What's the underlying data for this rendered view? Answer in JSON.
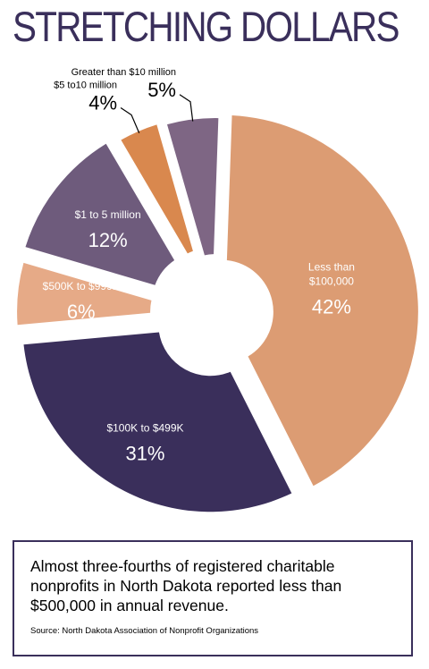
{
  "chart_data": {
    "type": "pie",
    "title": "STRETCHING DOLLARS",
    "categories": [
      "Less than $100,000",
      "$100K to $499K",
      "$500K to $999K",
      "$1 to 5 million",
      "$5 to10 million",
      "Greater than $10 million"
    ],
    "values": [
      42,
      31,
      6,
      12,
      4,
      5
    ],
    "unit": "%",
    "slices": [
      {
        "label_lines": [
          "Less than",
          "$100,000"
        ],
        "value": 42,
        "value_text": "42%",
        "color": "#dc9c73",
        "label_inside": true,
        "text_color": "#ffffff"
      },
      {
        "label_lines": [
          "$100K to $499K"
        ],
        "value": 31,
        "value_text": "31%",
        "color": "#3a2f5b",
        "label_inside": true,
        "text_color": "#ffffff"
      },
      {
        "label_lines": [
          "$500K to $999K"
        ],
        "value": 6,
        "value_text": "6%",
        "color": "#e6aa87",
        "label_inside": true,
        "text_color": "#ffffff"
      },
      {
        "label_lines": [
          "$1 to 5 million"
        ],
        "value": 12,
        "value_text": "12%",
        "color": "#6e5b7c",
        "label_inside": true,
        "text_color": "#ffffff"
      },
      {
        "label_lines": [
          "$5 to10 million"
        ],
        "value": 4,
        "value_text": "4%",
        "color": "#d9884e",
        "label_inside": false,
        "text_color": "#000000"
      },
      {
        "label_lines": [
          "Greater than $10 million"
        ],
        "value": 5,
        "value_text": "5%",
        "color": "#7e6684",
        "label_inside": false,
        "text_color": "#000000"
      }
    ]
  },
  "caption": {
    "text": "Almost three-fourths of registered charitable nonprofits in North Dakota reported less than $500,000 in annual revenue.",
    "source": "Source: North Dakota Association of Nonprofit Organizations"
  }
}
